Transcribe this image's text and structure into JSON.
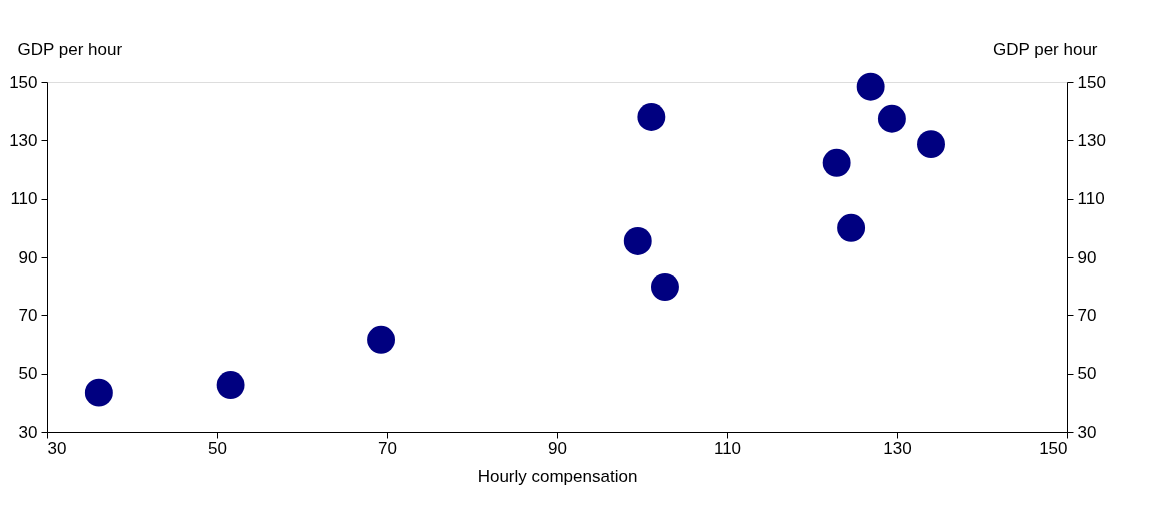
{
  "chart_data": {
    "type": "scatter",
    "xlabel": "Hourly compensation",
    "ylabel": "GDP per hour",
    "y2label": "GDP per hour",
    "x": [
      36.1,
      51.6,
      69.3,
      99.5,
      101.1,
      102.7,
      122.9,
      124.6,
      126.9,
      129.4,
      134.0
    ],
    "series": [
      {
        "color": "#000080",
        "values": [
          43.5,
          46.1,
          61.6,
          95.5,
          138,
          79.7,
          122.3,
          100,
          148.4,
          137.4,
          128.7
        ]
      }
    ],
    "xlim": [
      30,
      150
    ],
    "xticks": [
      30,
      50,
      70,
      90,
      110,
      130,
      150
    ],
    "ylim": [
      30,
      150
    ],
    "yticks": [
      30,
      50,
      70,
      90,
      110,
      130,
      150
    ],
    "y2lim": [
      30,
      150
    ],
    "y2ticks": [
      30,
      50,
      70,
      90,
      110,
      130,
      150
    ],
    "marker": "circle"
  }
}
